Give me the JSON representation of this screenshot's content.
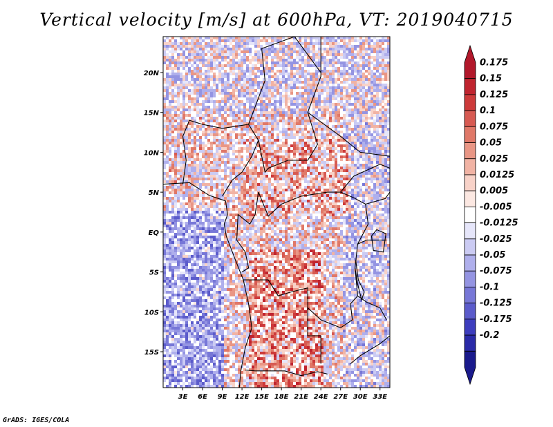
{
  "title": "Vertical velocity [m/s] at 600hPa, VT: 2019040715",
  "credit": "GrADS: IGES/COLA",
  "map": {
    "variable": "Vertical velocity",
    "units": "m/s",
    "level": "600hPa",
    "valid_time": "2019040715",
    "lon_range": [
      0,
      34.5
    ],
    "lat_range": [
      -19.5,
      24.5
    ],
    "lat_ticks": [
      {
        "value": 20,
        "label": "20N"
      },
      {
        "value": 15,
        "label": "15N"
      },
      {
        "value": 10,
        "label": "10N"
      },
      {
        "value": 5,
        "label": "5N"
      },
      {
        "value": 0,
        "label": "EQ"
      },
      {
        "value": -5,
        "label": "5S"
      },
      {
        "value": -10,
        "label": "10S"
      },
      {
        "value": -15,
        "label": "15S"
      }
    ],
    "lon_ticks": [
      {
        "value": 3,
        "label": "3E"
      },
      {
        "value": 6,
        "label": "6E"
      },
      {
        "value": 9,
        "label": "9E"
      },
      {
        "value": 12,
        "label": "12E"
      },
      {
        "value": 15,
        "label": "15E"
      },
      {
        "value": 18,
        "label": "18E"
      },
      {
        "value": 21,
        "label": "21E"
      },
      {
        "value": 24,
        "label": "24E"
      },
      {
        "value": 27,
        "label": "27E"
      },
      {
        "value": 30,
        "label": "30E"
      },
      {
        "value": 33,
        "label": "33E"
      }
    ]
  },
  "colorbar": {
    "labels": [
      "0.175",
      "0.15",
      "0.125",
      "0.1",
      "0.075",
      "0.05",
      "0.025",
      "0.0125",
      "0.005",
      "-0.005",
      "-0.0125",
      "-0.025",
      "-0.05",
      "-0.075",
      "-0.1",
      "-0.125",
      "-0.175",
      "-0.2"
    ],
    "colors": [
      "#b2182b",
      "#c0242f",
      "#cd3a3a",
      "#d75a52",
      "#e07868",
      "#e99685",
      "#f1b3a4",
      "#f8d2c8",
      "#fce8e2",
      "#ffffff",
      "#e6e6fa",
      "#cbcbf3",
      "#afafec",
      "#9494e2",
      "#7777d7",
      "#5b5bcb",
      "#3d3dbe",
      "#2a2aa8",
      "#1a1a8c"
    ]
  }
}
